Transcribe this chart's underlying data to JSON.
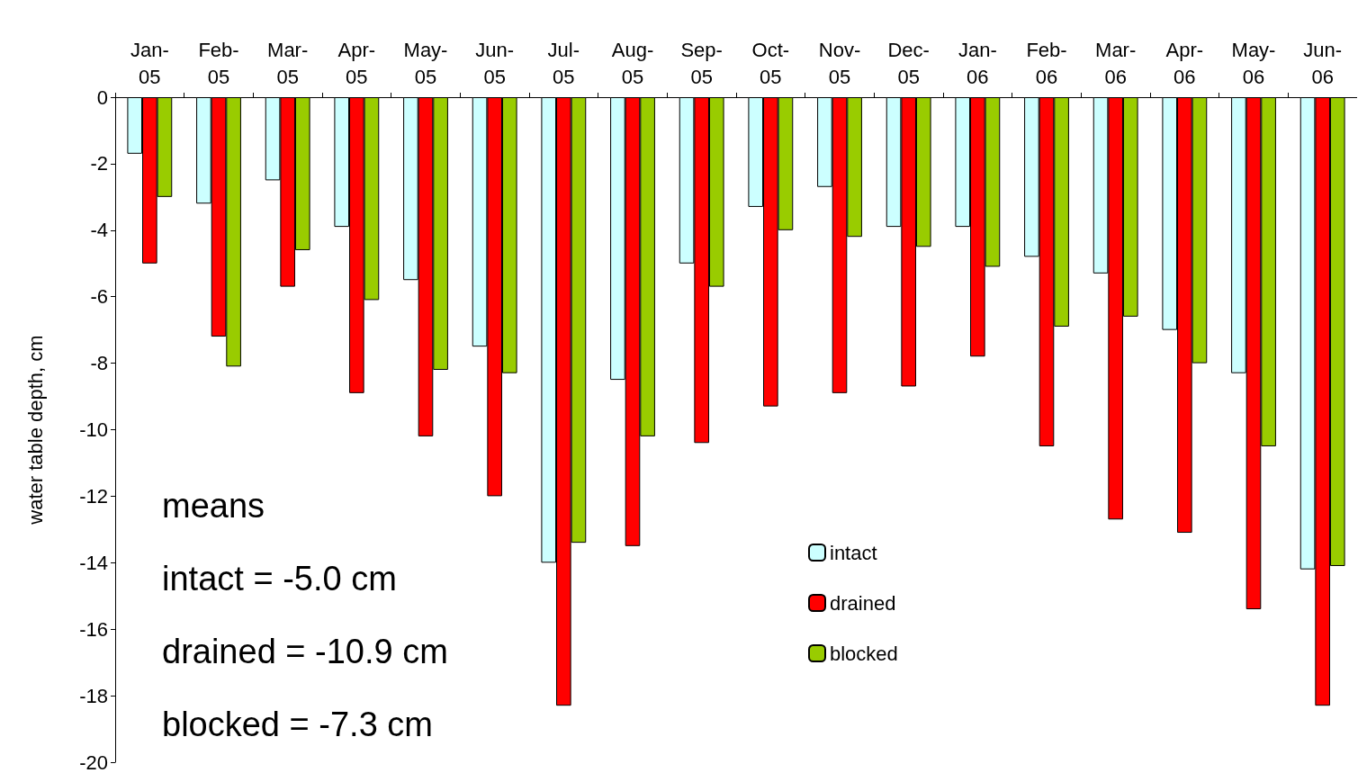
{
  "chart_data": {
    "type": "bar",
    "ylabel": "water table depth, cm",
    "categories": [
      "Jan-05",
      "Feb-05",
      "Mar-05",
      "Apr-05",
      "May-05",
      "Jun-05",
      "Jul-05",
      "Aug-05",
      "Sep-05",
      "Oct-05",
      "Nov-05",
      "Dec-05",
      "Jan-06",
      "Feb-06",
      "Mar-06",
      "Apr-06",
      "May-06",
      "Jun-06"
    ],
    "series": [
      {
        "name": "intact",
        "color": "#ccffff",
        "values": [
          -1.7,
          -3.2,
          -2.5,
          -3.9,
          -5.5,
          -7.5,
          -14.0,
          -8.5,
          -5.0,
          -3.3,
          -2.7,
          -3.9,
          -3.9,
          -4.8,
          -5.3,
          -7.0,
          -8.3,
          -14.2
        ]
      },
      {
        "name": "drained",
        "color": "#ff0000",
        "values": [
          -5.0,
          -7.2,
          -5.7,
          -8.9,
          -10.2,
          -12.0,
          -18.3,
          -13.5,
          -10.4,
          -9.3,
          -8.9,
          -8.7,
          -7.8,
          -10.5,
          -12.7,
          -13.1,
          -15.4,
          -18.3
        ]
      },
      {
        "name": "blocked",
        "color": "#99cc00",
        "values": [
          -3.0,
          -8.1,
          -4.6,
          -6.1,
          -8.2,
          -8.3,
          -13.4,
          -10.2,
          -5.7,
          -4.0,
          -4.2,
          -4.5,
          -5.1,
          -6.9,
          -6.6,
          -8.0,
          -10.5,
          -14.1
        ]
      }
    ],
    "ylim": [
      -20,
      0
    ],
    "yticks": [
      -20,
      -18,
      -16,
      -14,
      -12,
      -10,
      -8,
      -6,
      -4,
      -2,
      0
    ],
    "grid": false,
    "legend": "bottom",
    "annotations": [
      "means",
      "intact = -5.0 cm",
      "drained = -10.9 cm",
      "blocked = -7.3 cm"
    ]
  }
}
